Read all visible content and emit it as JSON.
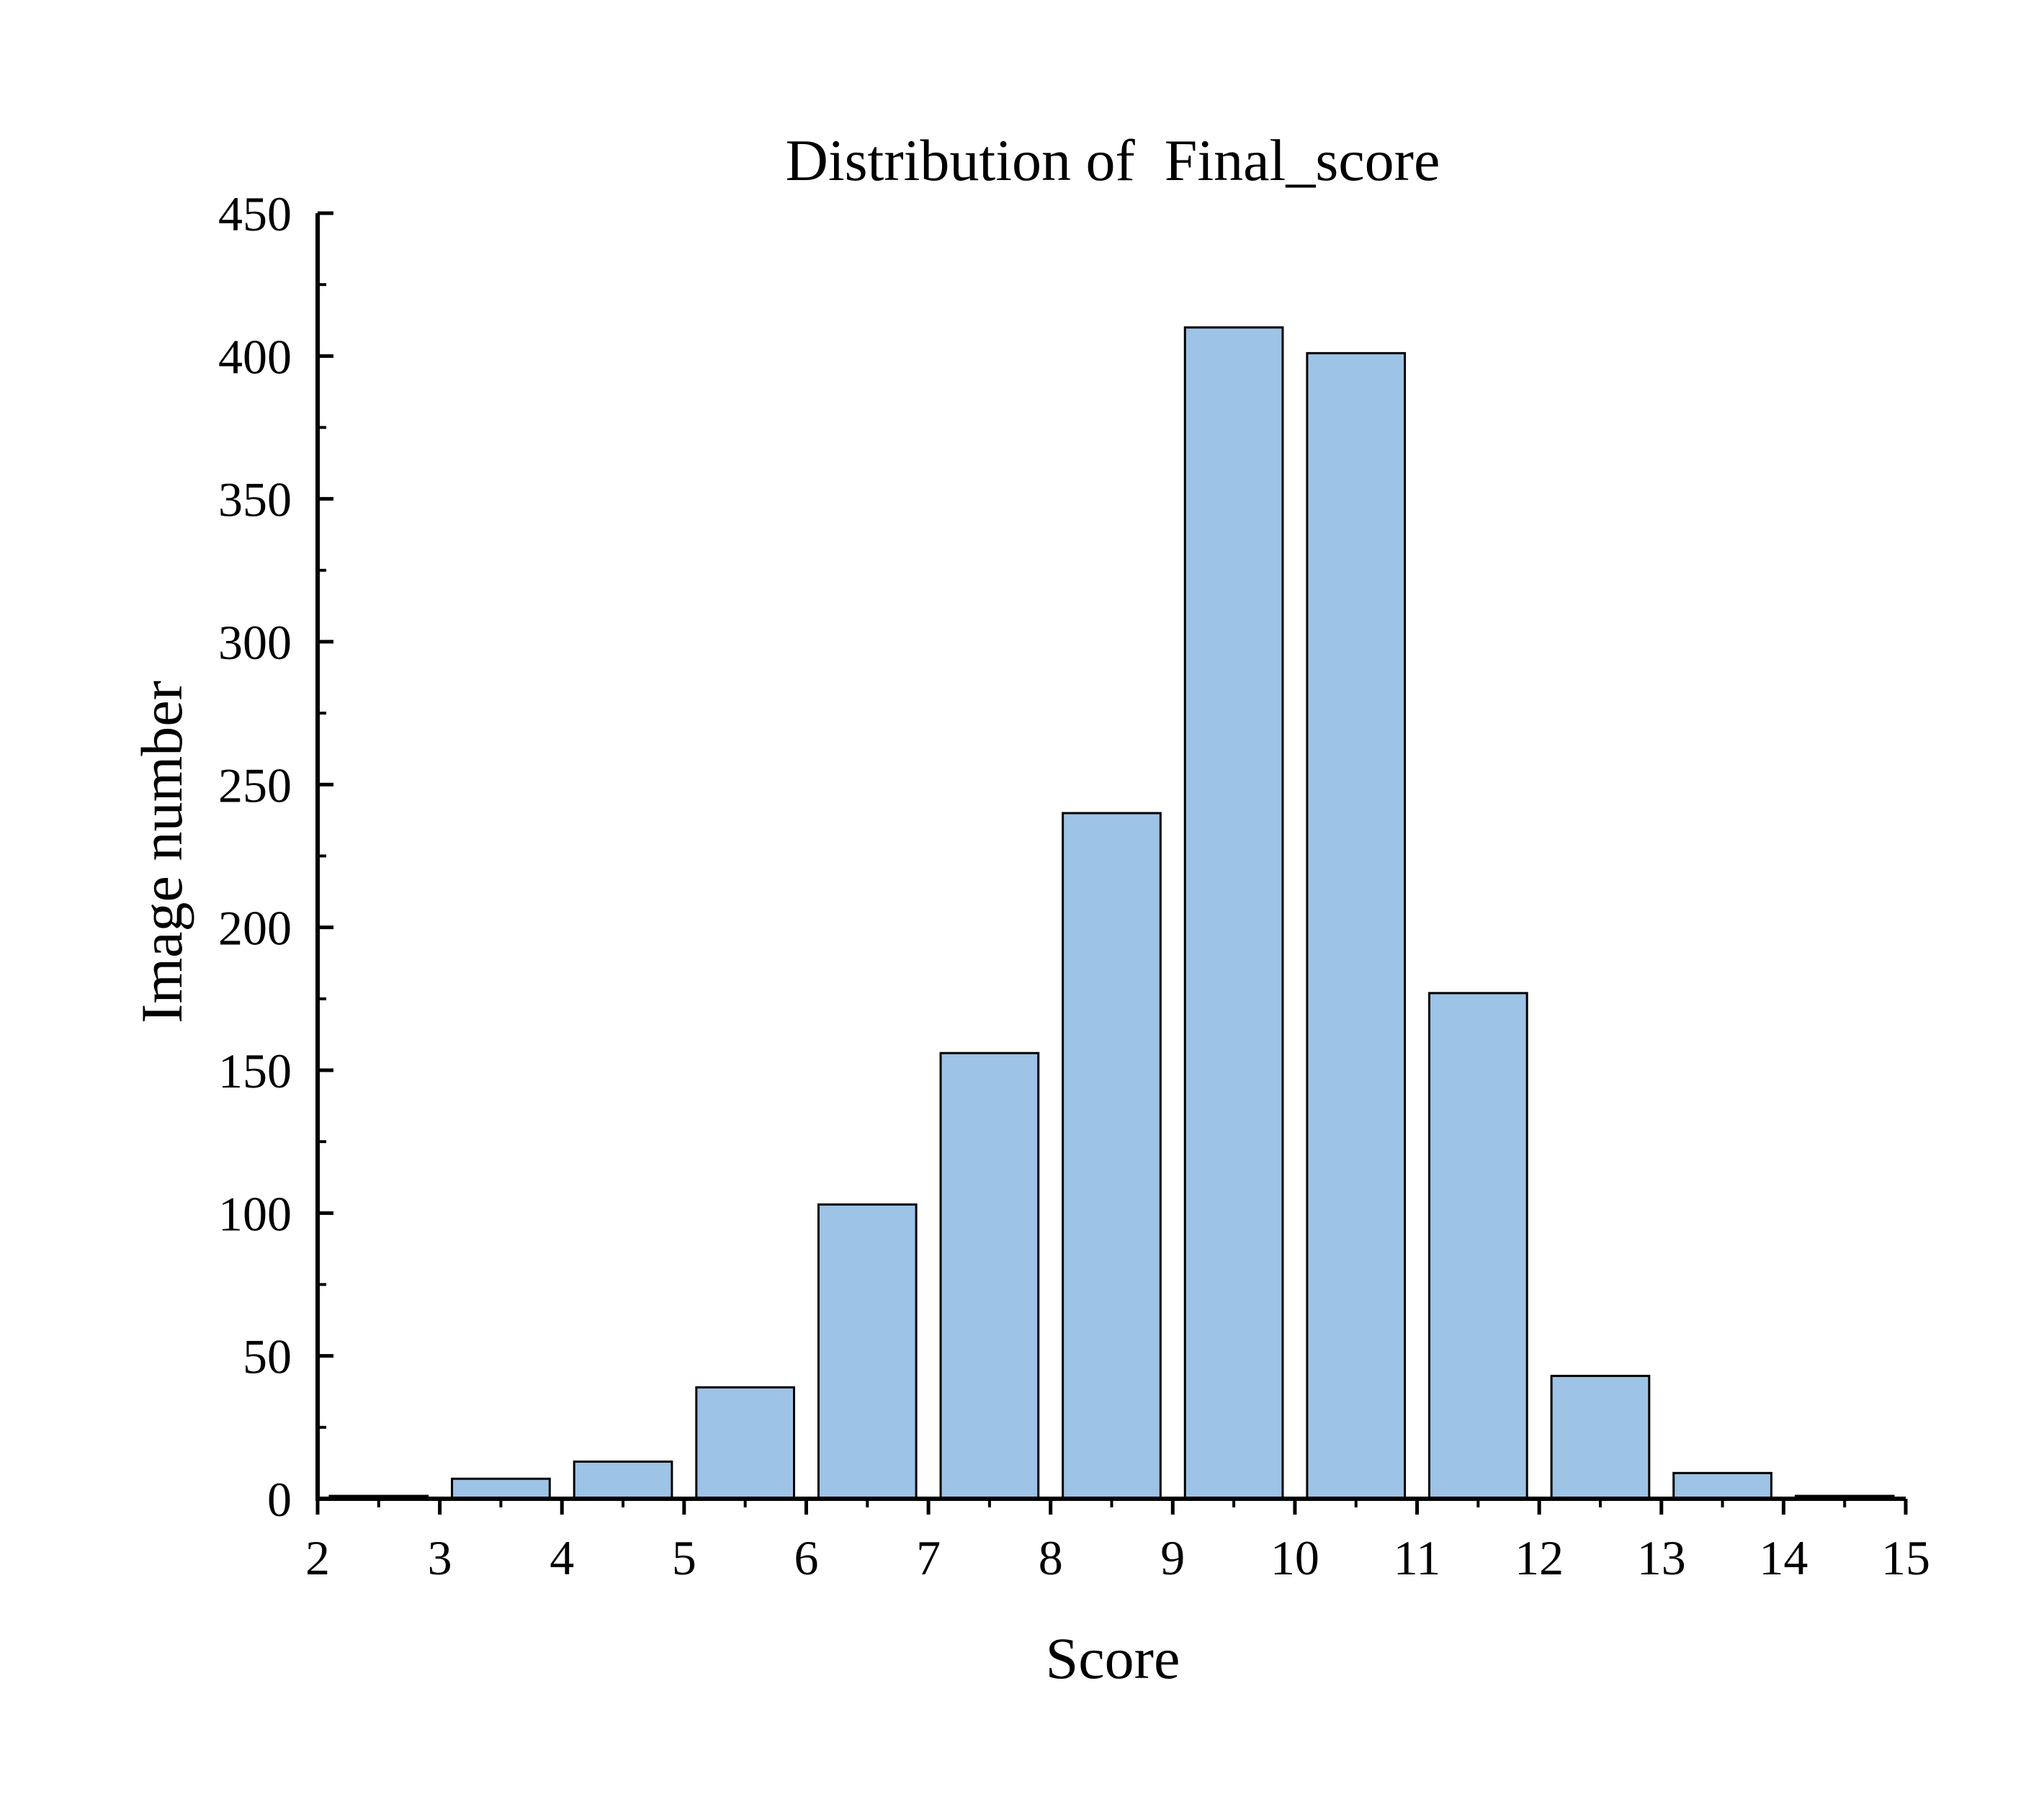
{
  "chart_data": {
    "type": "bar",
    "title": "Distribution of  Final_score",
    "xlabel": "Score",
    "ylabel": "Image number",
    "bins": [
      {
        "start": 2,
        "end": 3,
        "value": 1
      },
      {
        "start": 3,
        "end": 4,
        "value": 7
      },
      {
        "start": 4,
        "end": 5,
        "value": 13
      },
      {
        "start": 5,
        "end": 6,
        "value": 39
      },
      {
        "start": 6,
        "end": 7,
        "value": 103
      },
      {
        "start": 7,
        "end": 8,
        "value": 156
      },
      {
        "start": 8,
        "end": 9,
        "value": 240
      },
      {
        "start": 9,
        "end": 10,
        "value": 410
      },
      {
        "start": 10,
        "end": 11,
        "value": 401
      },
      {
        "start": 11,
        "end": 12,
        "value": 177
      },
      {
        "start": 12,
        "end": 13,
        "value": 43
      },
      {
        "start": 13,
        "end": 14,
        "value": 9
      },
      {
        "start": 14,
        "end": 15,
        "value": 1
      }
    ],
    "xlim": [
      2,
      15
    ],
    "ylim": [
      0,
      450
    ],
    "xticks": [
      2,
      3,
      4,
      5,
      6,
      7,
      8,
      9,
      10,
      11,
      12,
      13,
      14,
      15
    ],
    "yticks": [
      0,
      50,
      100,
      150,
      200,
      250,
      300,
      350,
      400,
      450
    ],
    "grid": false,
    "bar_color": "#9dc3e6",
    "edge_color": "#000000"
  }
}
